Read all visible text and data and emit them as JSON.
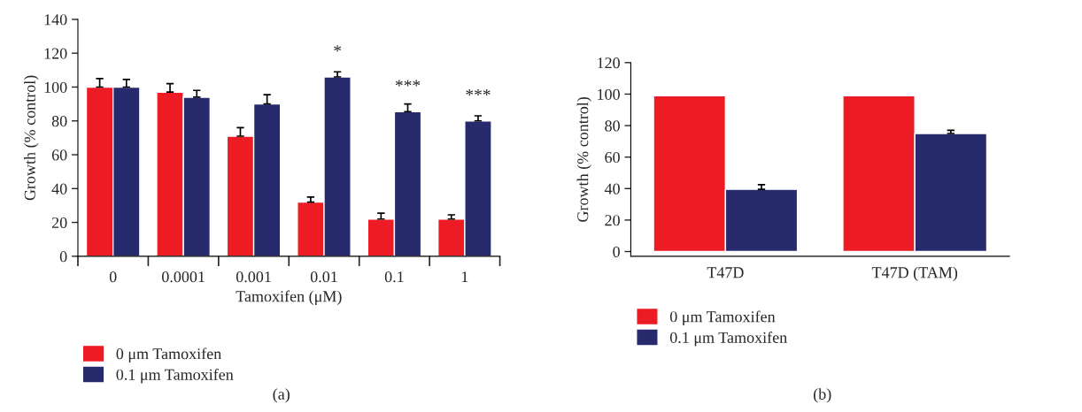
{
  "chart_data": [
    {
      "type": "bar",
      "categories": [
        "0",
        "0.0001",
        "0.001",
        "0.01",
        "0.1",
        "1"
      ],
      "xlabel": "Tamoxifen (μM)",
      "ylabel": "Growth (% control)",
      "ylim": [
        0,
        140
      ],
      "yticks": [
        0,
        20,
        40,
        60,
        80,
        100,
        120,
        140
      ],
      "legend": "bottom left",
      "series": [
        {
          "name": "0 μm Tamoxifen",
          "color": "#ed1c24",
          "values": [
            100,
            97,
            71,
            32,
            22,
            22
          ],
          "errors": [
            [
              100,
              105
            ],
            [
              97,
              102
            ],
            [
              71,
              76
            ],
            [
              32,
              35
            ],
            [
              22,
              25.5
            ],
            [
              22,
              24.5
            ]
          ]
        },
        {
          "name": "0.1 μm Tamoxifen",
          "color": "#282a6e",
          "values": [
            100,
            94,
            90,
            106,
            85.5,
            80
          ],
          "errors": [
            [
              100,
              104.5
            ],
            [
              94,
              98
            ],
            [
              90,
              95.5
            ],
            [
              106,
              109
            ],
            [
              85.5,
              90
            ],
            [
              80,
              83
            ]
          ]
        }
      ],
      "annotations": [
        {
          "text": "*",
          "x": "0.01",
          "y": 106
        },
        {
          "text": "***",
          "x": "0.1",
          "y": 85.5
        },
        {
          "text": "***",
          "x": "1",
          "y": 80
        },
        "(a)"
      ]
    },
    {
      "type": "bar",
      "categories": [
        "T47D",
        "T47D (TAM)"
      ],
      "ylabel": "Growth (% control)",
      "ylim": [
        -3,
        120
      ],
      "yticks": [
        0,
        20,
        40,
        60,
        80,
        100,
        120
      ],
      "legend": "bottom left",
      "series": [
        {
          "name": "0 μm Tamoxifen",
          "color": "#ed1c24",
          "values": [
            99,
            99
          ]
        },
        {
          "name": "0.1 μm Tamoxifen",
          "color": "#282a6e",
          "values": [
            39.5,
            75
          ],
          "errors": [
            [
              39.5,
              42.5
            ],
            [
              75,
              77
            ]
          ]
        }
      ],
      "annotations": [
        "(b)"
      ]
    }
  ]
}
